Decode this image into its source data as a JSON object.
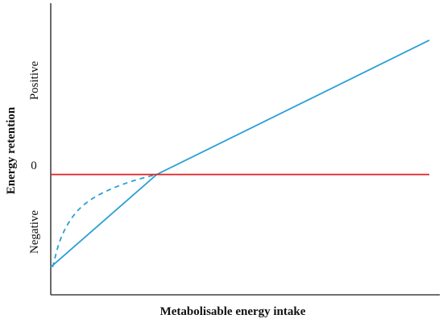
{
  "chart_data": {
    "type": "line",
    "title": "",
    "xlabel": "Metabolisable energy intake",
    "ylabel": "Energy retention",
    "y_tick_labels": {
      "positive": "Positive",
      "zero": "0",
      "negative": "Negative"
    },
    "x_ticks_shown": false,
    "grid": false,
    "legend": "none",
    "xlim": [
      0,
      10
    ],
    "ylim": [
      -1.3,
      1.85
    ],
    "series": [
      {
        "style": "solid",
        "color": "#2a9fd6",
        "x": [
          0,
          2.8,
          10
        ],
        "y": [
          -1.0,
          0,
          1.45
        ]
      },
      {
        "style": "dashed",
        "color": "#2a9fd6",
        "x": [
          0.05,
          0.25,
          0.6,
          1.0,
          1.5,
          2.0,
          2.5,
          2.8
        ],
        "y": [
          -1.0,
          -0.68,
          -0.43,
          -0.28,
          -0.17,
          -0.09,
          -0.03,
          0
        ]
      },
      {
        "style": "solid",
        "color": "#e02020",
        "x": [
          0,
          10
        ],
        "y": [
          0,
          0
        ]
      }
    ]
  }
}
